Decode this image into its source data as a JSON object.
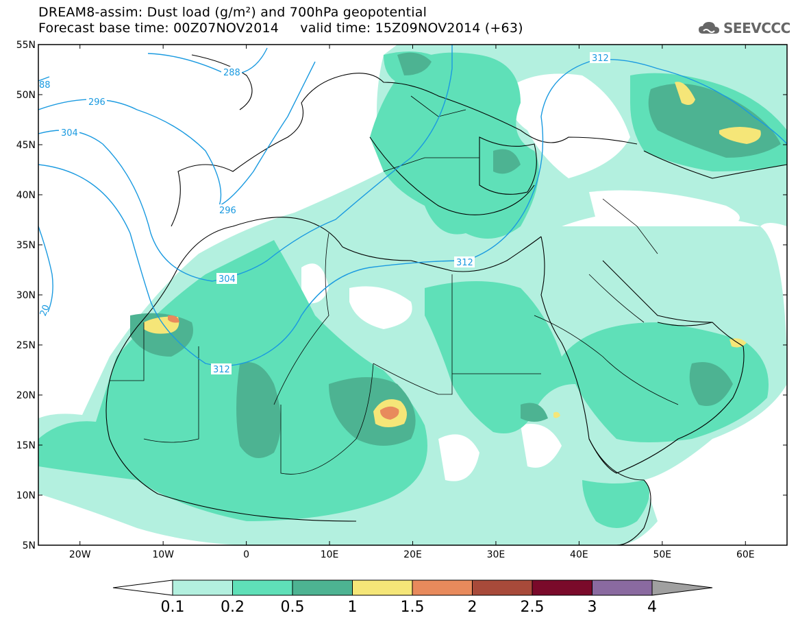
{
  "title": {
    "line1": "DREAM8-assim: Dust load (g/m²) and 700hPa geopotential",
    "line2": "Forecast base time: 00Z07NOV2014     valid time: 15Z09NOV2014 (+63)"
  },
  "logo": {
    "text": "SEEVCCC",
    "icon": "cloud-icon"
  },
  "axes": {
    "lon_ticks": [
      "20W",
      "10W",
      "0",
      "10E",
      "20E",
      "30E",
      "40E",
      "50E",
      "60E"
    ],
    "lat_ticks": [
      "55N",
      "50N",
      "45N",
      "40N",
      "35N",
      "30N",
      "25N",
      "20N",
      "15N",
      "10N",
      "5N"
    ],
    "lon_range": [
      -25,
      65
    ],
    "lat_range": [
      5,
      55
    ]
  },
  "contours": {
    "labels": [
      "288",
      "296",
      "304",
      "296",
      "304",
      "312",
      "312",
      "312",
      "88",
      "20"
    ],
    "color": "#1a9ae0"
  },
  "colorbar": {
    "levels": [
      "0.1",
      "0.2",
      "0.5",
      "1",
      "1.5",
      "2",
      "2.5",
      "3",
      "4"
    ],
    "colors": [
      "#b3f0df",
      "#5fe0b8",
      "#4db392",
      "#f5e678",
      "#e88a5c",
      "#a84a3a",
      "#7a0a2a",
      "#8a6aa0"
    ],
    "under_color": "#ffffff",
    "over_color": "#a0a0a0"
  },
  "colors": {
    "map_border": "#000000",
    "coast": "#000000"
  }
}
